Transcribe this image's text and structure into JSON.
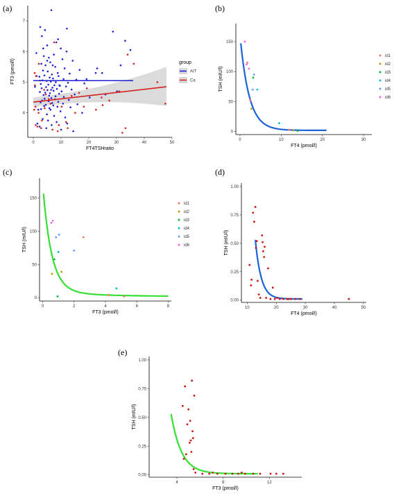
{
  "colors": {
    "AIT": "#1f1fd6",
    "Ca": "#d62020",
    "ci_band": "#bdbdbd",
    "fit_blue": "#1a63d9",
    "fit_green": "#33e033",
    "id1": "#f8766d",
    "id2": "#b79f00",
    "id3": "#00ba38",
    "id4": "#00bfc4",
    "id5": "#619cff",
    "id6": "#f564e3",
    "red_points": "#cc1111"
  },
  "chart_data": [
    {
      "id": "a",
      "panel_label": "(a)",
      "type": "scatter",
      "xlabel": "FT4TSHratio",
      "ylabel": "FT3 (pmol/l)",
      "xlim": [
        -2,
        50
      ],
      "ylim": [
        3.2,
        7.5
      ],
      "xticks": [
        "0",
        "10",
        "20",
        "30",
        "40",
        "50"
      ],
      "yticks": [
        "4",
        "5",
        "6",
        "7"
      ],
      "legend": {
        "title": "group",
        "entries": [
          "AIT",
          "Ca"
        ]
      },
      "fits": [
        {
          "name": "AIT",
          "x": [
            0,
            36
          ],
          "y": [
            5.05,
            5.05
          ]
        },
        {
          "name": "Ca",
          "x": [
            0,
            48
          ],
          "y": [
            4.35,
            4.85
          ],
          "ci_lower": [
            4.2,
            4.2
          ],
          "ci_upper": [
            4.5,
            5.5
          ]
        }
      ],
      "series": [
        {
          "name": "AIT",
          "x": [
            6.5,
            2.5,
            4.2,
            3.1,
            8.3,
            5.0,
            9.9,
            12.0,
            7.4,
            3.8,
            5.6,
            10.5,
            14.2,
            6.1,
            2.9,
            4.4,
            7.9,
            11.3,
            16.7,
            3.5,
            5.2,
            8.8,
            13.1,
            6.7,
            4.0,
            9.1,
            2.2,
            5.9,
            7.1,
            10.9,
            15.5,
            3.3,
            4.8,
            6.3,
            8.1,
            12.5,
            18.4,
            2.7,
            5.4,
            7.6,
            9.6,
            11.8,
            4.6,
            6.9,
            3.0,
            8.5,
            13.8,
            5.1,
            7.3,
            10.2,
            2.4,
            4.3,
            6.0,
            9.3,
            14.9,
            3.7,
            5.7,
            8.0,
            11.0,
            20.3,
            6.5,
            4.1,
            7.8,
            12.8,
            3.2,
            5.5,
            9.0,
            2.6,
            6.8,
            10.7,
            15.9,
            4.5,
            7.2,
            3.9,
            8.7,
            13.4,
            5.8,
            2.8,
            6.2,
            9.8,
            17.6,
            4.9,
            7.5,
            11.5,
            3.4,
            5.3,
            8.4,
            12.2,
            6.6,
            2.3,
            4.7,
            10.0,
            14.4,
            7.0,
            3.6,
            9.4,
            5.0,
            8.9,
            22.5,
            6.4,
            1.2,
            26.0,
            1.8,
            28.7,
            0.6,
            33.1,
            35.0,
            31.5,
            24.8,
            19.2,
            1.5,
            12.1,
            1.1,
            23.0,
            30.2
          ],
          "y": [
            7.35,
            6.8,
            6.7,
            6.5,
            6.3,
            6.2,
            6.1,
            6.0,
            5.9,
            5.85,
            5.8,
            5.75,
            5.7,
            5.65,
            5.6,
            5.55,
            5.5,
            5.45,
            5.4,
            5.38,
            5.35,
            5.3,
            5.28,
            5.25,
            5.22,
            5.2,
            5.18,
            5.15,
            5.12,
            5.1,
            5.08,
            5.06,
            5.04,
            5.02,
            5.0,
            4.98,
            4.96,
            4.94,
            4.92,
            4.9,
            4.88,
            4.86,
            4.84,
            4.82,
            4.8,
            4.78,
            4.76,
            4.74,
            4.72,
            4.7,
            4.68,
            4.66,
            4.64,
            4.62,
            4.6,
            4.58,
            4.56,
            4.54,
            4.52,
            4.5,
            4.48,
            4.46,
            4.44,
            4.42,
            4.4,
            4.38,
            4.36,
            4.34,
            4.32,
            4.3,
            4.28,
            4.26,
            4.24,
            4.22,
            4.2,
            4.18,
            4.15,
            4.12,
            4.1,
            4.05,
            4.0,
            3.95,
            3.9,
            3.85,
            3.8,
            3.75,
            3.7,
            3.65,
            3.6,
            3.55,
            3.5,
            3.45,
            3.4,
            5.55,
            6.1,
            4.9,
            5.7,
            6.4,
            5.3,
            4.75,
            5.2,
            4.6,
            4.1,
            6.65,
            4.85,
            6.35,
            6.05,
            5.55,
            5.3,
            5.1,
            3.65,
            6.75,
            5.95,
            5.45,
            4.7
          ]
        },
        {
          "name": "Ca",
          "x": [
            0.5,
            1.5,
            2.8,
            0.8,
            4.5,
            6.2,
            3.1,
            1.0,
            0.3,
            2.0,
            8.8,
            12.4,
            7.5,
            15.1,
            22.6,
            18.2,
            25.0,
            33.2,
            32.1,
            34.0,
            31.0,
            36.2,
            44.7,
            47.6,
            24.6,
            19.3,
            13.8,
            10.2,
            5.6,
            3.9,
            9.2,
            16.5,
            27.4,
            0.9,
            1.9,
            4.1,
            11.8,
            0.6,
            2.4,
            6.9
          ],
          "y": [
            5.3,
            3.55,
            3.5,
            4.2,
            4.6,
            4.3,
            3.75,
            5.2,
            4.1,
            5.6,
            3.4,
            3.5,
            6.3,
            4.0,
            4.1,
            4.2,
            4.25,
            3.5,
            3.35,
            5.9,
            4.7,
            5.6,
            5.0,
            4.3,
            4.5,
            4.8,
            4.55,
            4.2,
            4.45,
            4.75,
            3.6,
            4.65,
            4.4,
            3.6,
            4.0,
            4.15,
            3.7,
            4.9,
            5.05,
            3.45
          ]
        }
      ]
    },
    {
      "id": "b",
      "panel_label": "(b)",
      "type": "scatter",
      "xlabel": "FT4 (pmol/l)",
      "ylabel": "TSH (mIU/l)",
      "xlim": [
        -1,
        32
      ],
      "ylim": [
        -5,
        180
      ],
      "xticks": [
        "0",
        "10",
        "20",
        "30"
      ],
      "yticks": [
        "0",
        "50",
        "100",
        "150"
      ],
      "legend": {
        "title": "",
        "entries": [
          "id1",
          "id2",
          "id3",
          "id4",
          "id5",
          "id6"
        ]
      },
      "fit": {
        "color": "fit_blue",
        "x_from": 0.2,
        "x_to": 21,
        "decay": "inverse"
      },
      "series": [
        {
          "name": "id1",
          "x": [
            1.8,
            2.5,
            12.0
          ],
          "y": [
            115,
            52,
            3
          ]
        },
        {
          "name": "id2",
          "x": [
            2.8,
            13.0
          ],
          "y": [
            38,
            2
          ]
        },
        {
          "name": "id3",
          "x": [
            3.2,
            14.0
          ],
          "y": [
            90,
            1
          ]
        },
        {
          "name": "id4",
          "x": [
            4.2,
            9.5
          ],
          "y": [
            70,
            14
          ]
        },
        {
          "name": "id5",
          "x": [
            3.1,
            3.4
          ],
          "y": [
            70,
            95
          ]
        },
        {
          "name": "id6",
          "x": [
            1.6,
            2.2,
            1.2
          ],
          "y": [
            112,
            105,
            150
          ]
        }
      ]
    },
    {
      "id": "c",
      "panel_label": "(c)",
      "type": "scatter",
      "xlabel": "FT3 (pmol/l)",
      "ylabel": "TSH (mIU/l)",
      "xlim": [
        -0.2,
        8.2
      ],
      "ylim": [
        -5,
        180
      ],
      "xticks": [
        "0",
        "2",
        "4",
        "6",
        "8"
      ],
      "yticks": [
        "0",
        "50",
        "100",
        "150"
      ],
      "legend": {
        "title": "",
        "entries": [
          "id1",
          "id2",
          "id3",
          "id4",
          "id5",
          "id6"
        ]
      },
      "fit": {
        "color": "fit_green",
        "x_from": 0.05,
        "x_to": 8,
        "decay": "inverse"
      },
      "series": [
        {
          "name": "id1",
          "x": [
            2.6,
            4.2,
            5.2
          ],
          "y": [
            91,
            4,
            2
          ]
        },
        {
          "name": "id2",
          "x": [
            0.6,
            1.2
          ],
          "y": [
            36,
            39
          ]
        },
        {
          "name": "id3",
          "x": [
            0.75,
            0.95
          ],
          "y": [
            58,
            2
          ]
        },
        {
          "name": "id4",
          "x": [
            1.0,
            4.7
          ],
          "y": [
            69,
            14
          ]
        },
        {
          "name": "id5",
          "x": [
            0.85,
            1.05,
            2.0
          ],
          "y": [
            91,
            95,
            71
          ]
        },
        {
          "name": "id6",
          "x": [
            0.55,
            0.65
          ],
          "y": [
            113,
            116
          ]
        }
      ]
    },
    {
      "id": "d",
      "panel_label": "(d)",
      "type": "scatter",
      "xlabel": "FT4 (pmol/l)",
      "ylabel": "TSH (mIU/l)",
      "xlim": [
        8,
        51
      ],
      "ylim": [
        -0.02,
        1.03
      ],
      "xticks": [
        "10",
        "20",
        "30",
        "40",
        "50"
      ],
      "yticks": [
        "0.00",
        "0.25",
        "0.50",
        "0.75",
        "1.00"
      ],
      "fit": {
        "color": "fit_blue",
        "x_from": 12.8,
        "x_to": 29,
        "decay": "inverse_shift"
      },
      "series": [
        {
          "name": "points",
          "x": [
            10.8,
            11.5,
            12.0,
            12.4,
            12.8,
            13.0,
            13.3,
            13.6,
            14.0,
            15.1,
            15.3,
            15.5,
            15.8,
            16.0,
            16.5,
            17.2,
            18.0,
            18.8,
            19.5,
            21.2,
            22.4,
            23.8,
            25.0,
            26.6,
            28.2,
            45.0,
            11.3,
            14.5,
            20.3,
            24.2
          ],
          "y": [
            0.31,
            0.18,
            0.77,
            0.69,
            0.82,
            0.46,
            0.52,
            0.17,
            0.05,
            0.57,
            0.51,
            0.43,
            0.38,
            0.47,
            0.02,
            0.28,
            0.01,
            0.11,
            0.01,
            0.01,
            0.01,
            0.01,
            0.01,
            0.01,
            0.01,
            0.01,
            0.13,
            0.02,
            0.02,
            0.01
          ]
        }
      ]
    },
    {
      "id": "e",
      "panel_label": "(e)",
      "type": "scatter",
      "xlabel": "FT3 (pmol/l)",
      "ylabel": "TSH (mIU/l)",
      "xlim": [
        1.6,
        14.8
      ],
      "ylim": [
        -0.02,
        1.03
      ],
      "xticks": [
        "4",
        "8",
        "12"
      ],
      "yticks": [
        "0.00",
        "0.25",
        "0.50",
        "0.75",
        "1.00"
      ],
      "fit": {
        "color": "fit_green",
        "x_from": 3.5,
        "x_to": 11,
        "decay": "inverse_shift"
      },
      "series": [
        {
          "name": "points",
          "x": [
            4.5,
            4.7,
            4.9,
            5.0,
            5.1,
            5.2,
            5.3,
            5.35,
            5.4,
            5.5,
            4.6,
            4.8,
            5.15,
            5.25,
            5.45,
            5.6,
            6.2,
            6.8,
            7.5,
            8.2,
            8.8,
            9.3,
            9.9,
            10.6,
            11.2,
            12.1,
            12.6,
            13.2,
            7.1,
            9.6
          ],
          "y": [
            0.6,
            0.77,
            0.44,
            0.57,
            0.28,
            0.3,
            0.82,
            0.38,
            0.32,
            0.69,
            0.14,
            0.18,
            0.47,
            0.2,
            0.05,
            0.02,
            0.01,
            0.01,
            0.01,
            0.01,
            0.01,
            0.01,
            0.01,
            0.01,
            0.01,
            0.01,
            0.01,
            0.01,
            0.02,
            0.02
          ]
        }
      ]
    }
  ]
}
